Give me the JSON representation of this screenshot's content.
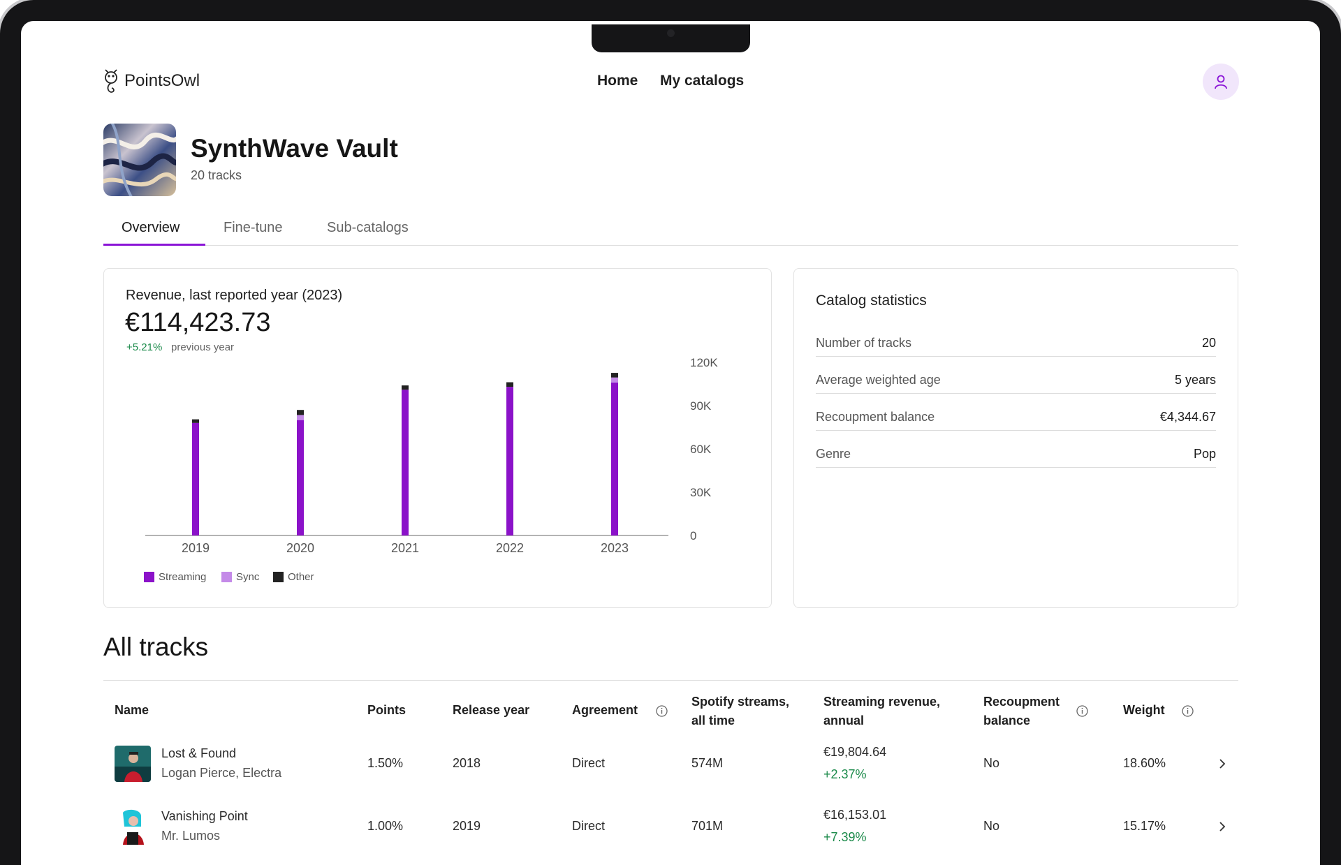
{
  "brand": {
    "name": "PointsOwl",
    "icon": "owl-logo-icon"
  },
  "nav": {
    "home": "Home",
    "catalogs": "My catalogs"
  },
  "user": {
    "icon": "user-icon"
  },
  "catalog": {
    "title": "SynthWave Vault",
    "subtitle": "20 tracks"
  },
  "tabs": [
    {
      "label": "Overview",
      "active": true
    },
    {
      "label": "Fine-tune",
      "active": false
    },
    {
      "label": "Sub-catalogs",
      "active": false
    }
  ],
  "revenue": {
    "label": "Revenue, last reported year (2023)",
    "value": "€114,423.73",
    "change": "+5.21%",
    "change_note": "previous year"
  },
  "chart_data": {
    "type": "bar",
    "stacked": true,
    "categories": [
      "2019",
      "2020",
      "2021",
      "2022",
      "2023"
    ],
    "series": [
      {
        "name": "Streaming",
        "color": "#8b12c9",
        "values": [
          78000,
          80000,
          101000,
          103000,
          106000
        ]
      },
      {
        "name": "Sync",
        "color": "#c48ae8",
        "values": [
          0,
          3500,
          0,
          0,
          3500
        ]
      },
      {
        "name": "Other",
        "color": "#222222",
        "values": [
          2500,
          3500,
          3000,
          3200,
          3200
        ]
      }
    ],
    "yticks": [
      "120K",
      "90K",
      "60K",
      "30K",
      "0"
    ],
    "ylim": [
      0,
      120000
    ],
    "axis_side": "right",
    "legend_position": "bottom-left"
  },
  "stats": {
    "title": "Catalog statistics",
    "rows": [
      {
        "label": "Number of tracks",
        "value": "20"
      },
      {
        "label": "Average weighted age",
        "value": "5 years"
      },
      {
        "label": "Recoupment balance",
        "value": "€4,344.67"
      },
      {
        "label": "Genre",
        "value": "Pop"
      }
    ]
  },
  "tracks": {
    "title": "All tracks",
    "headers": {
      "name": "Name",
      "points": "Points",
      "release_year": "Release year",
      "agreement": "Agreement",
      "spotify_l1": "Spotify streams,",
      "spotify_l2": "all time",
      "revenue_l1": "Streaming revenue,",
      "revenue_l2": "annual",
      "recoup_l1": "Recoupment",
      "recoup_l2": "balance",
      "weight": "Weight"
    },
    "rows": [
      {
        "name": "Lost & Found",
        "artist": "Logan Pierce, Electra",
        "points": "1.50%",
        "release_year": "2018",
        "agreement": "Direct",
        "streams": "574M",
        "revenue": "€19,804.64",
        "revenue_change": "+2.37%",
        "recoup": "No",
        "weight": "18.60%"
      },
      {
        "name": "Vanishing Point",
        "artist": "Mr. Lumos",
        "points": "1.00%",
        "release_year": "2019",
        "agreement": "Direct",
        "streams": "701M",
        "revenue": "€16,153.01",
        "revenue_change": "+7.39%",
        "recoup": "No",
        "weight": "15.17%"
      }
    ]
  }
}
